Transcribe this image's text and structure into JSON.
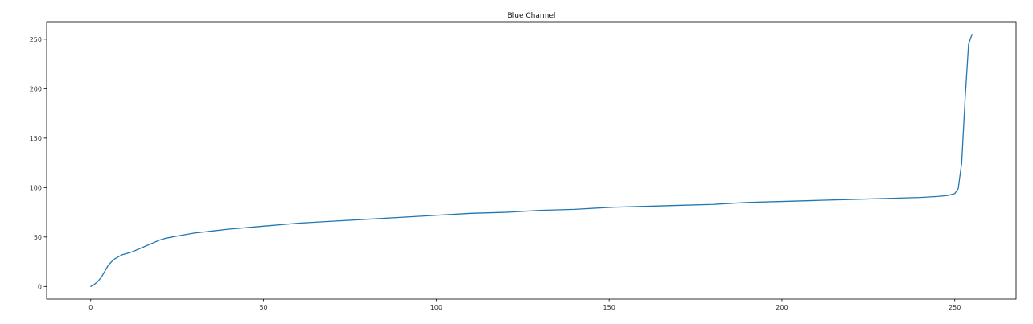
{
  "chart_data": {
    "type": "line",
    "title": "Blue Channel",
    "xlabel": "",
    "ylabel": "",
    "xlim": [
      -12.75,
      267.75
    ],
    "ylim": [
      -12.75,
      267.75
    ],
    "x_ticks": [
      0,
      50,
      100,
      150,
      200,
      250
    ],
    "y_ticks": [
      0,
      50,
      100,
      150,
      200,
      250
    ],
    "grid": false,
    "legend": "none",
    "series": [
      {
        "color": "#1f77b4",
        "x": [
          0,
          1,
          2,
          3,
          4,
          5,
          6,
          7,
          8,
          9,
          10,
          12,
          14,
          16,
          18,
          20,
          22,
          25,
          30,
          35,
          40,
          50,
          60,
          70,
          80,
          90,
          100,
          110,
          120,
          130,
          140,
          150,
          160,
          170,
          180,
          190,
          200,
          210,
          220,
          230,
          240,
          245,
          248,
          250,
          251,
          252,
          253,
          254,
          255
        ],
        "y": [
          0,
          2,
          5,
          9,
          15,
          21,
          25,
          28,
          30,
          32,
          33,
          35,
          38,
          41,
          44,
          47,
          49,
          51,
          54,
          56,
          58,
          61,
          64,
          66,
          68,
          70,
          72,
          74,
          75,
          77,
          78,
          80,
          81,
          82,
          83,
          85,
          86,
          87,
          88,
          89,
          90,
          91,
          92,
          94,
          99,
          125,
          190,
          245,
          255
        ]
      }
    ]
  }
}
